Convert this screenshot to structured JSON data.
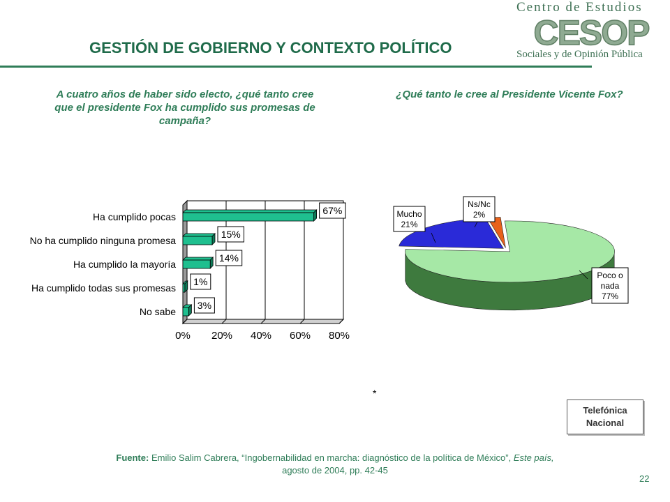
{
  "slide": {
    "title": "GESTIÓN DE GOBIERNO Y CONTEXTO POLÍTICO",
    "logo_top": "Centro de Estudios",
    "logo_mark": "CESOP",
    "logo_bottom": "Sociales y de Opinión Pública",
    "asterisk": "*",
    "badge_line1": "Telefónica",
    "badge_line2": "Nacional",
    "source_label": "Fuente:",
    "source_author": "Emilio Salim Cabrera,",
    "source_title": "“Ingobernabilidad en marcha: diagnóstico de la política de México”,",
    "source_pub": "Este país,",
    "source_date": "agosto de 2004, pp. 42-45",
    "page_number": "22"
  },
  "chart_data": [
    {
      "type": "bar",
      "orientation": "horizontal",
      "title": "A cuatro años de haber sido electo, ¿qué tanto cree que el presidente Fox ha cumplido sus promesas de campaña?",
      "categories": [
        "Ha cumplido pocas",
        "No ha cumplido ninguna promesa",
        "Ha cumplido la mayoría",
        "Ha cumplido todas sus promesas",
        "No sabe"
      ],
      "values": [
        67,
        15,
        14,
        1,
        3
      ],
      "value_labels": [
        "67%",
        "15%",
        "14%",
        "1%",
        "3%"
      ],
      "xlim": [
        0,
        80
      ],
      "xticks": [
        "0%",
        "20%",
        "40%",
        "60%",
        "80%"
      ],
      "grid": true,
      "colors": {
        "bar": "#1fbf8f",
        "bar_dark": "#0f7a58",
        "wall": "#9a9a9a"
      }
    },
    {
      "type": "pie",
      "title": "¿Qué tanto le cree al Presidente Vicente Fox?",
      "slices": [
        {
          "label": "Poco o nada",
          "label_lines": [
            "Poco o",
            "nada"
          ],
          "value": 77,
          "value_label": "77%",
          "color": "#a6e8a6",
          "side_color": "#3e7a3e"
        },
        {
          "label": "Mucho",
          "label_lines": [
            "Mucho"
          ],
          "value": 21,
          "value_label": "21%",
          "color": "#2a2ad8",
          "side_color": "#101070"
        },
        {
          "label": "Ns/Nc",
          "label_lines": [
            "Ns/Nc"
          ],
          "value": 2,
          "value_label": "2%",
          "color": "#e8611a",
          "side_color": "#8a3a10"
        }
      ]
    }
  ]
}
